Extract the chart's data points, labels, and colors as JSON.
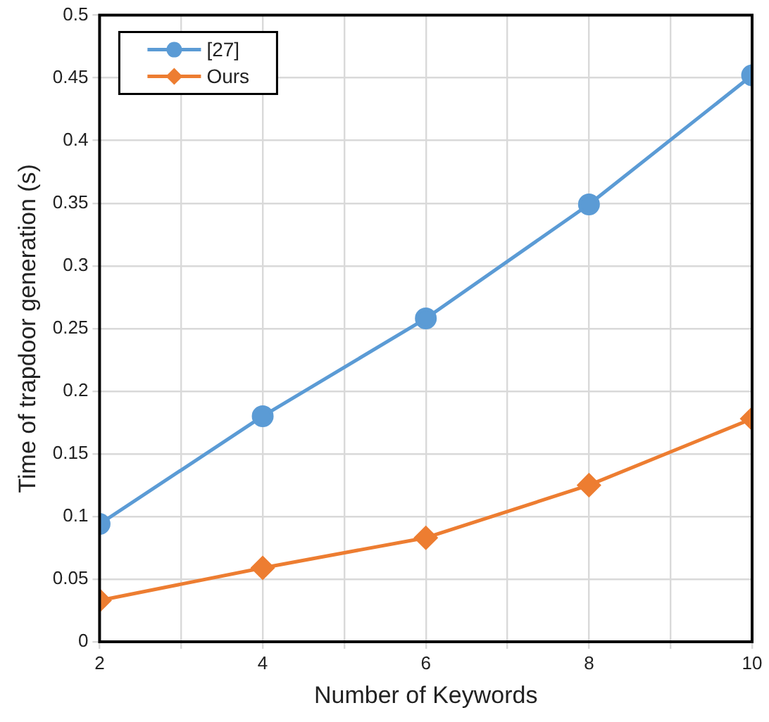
{
  "chart_data": {
    "type": "line",
    "xlabel": "Number of Keywords",
    "ylabel": "Time of trapdoor generation (s)",
    "x": [
      2,
      4,
      6,
      8,
      10
    ],
    "series": [
      {
        "name": "[27]",
        "color": "#5b9bd5",
        "marker": "circle",
        "values": [
          0.094,
          0.18,
          0.258,
          0.349,
          0.452
        ]
      },
      {
        "name": "Ours",
        "color": "#ed7d31",
        "marker": "diamond",
        "values": [
          0.033,
          0.059,
          0.083,
          0.125,
          0.178
        ]
      }
    ],
    "xlim": [
      2,
      10
    ],
    "xticks": [
      2,
      {
        "value": 3,
        "label": null
      },
      4,
      {
        "value": 5,
        "label": null
      },
      6,
      {
        "value": 7,
        "label": null
      },
      8,
      {
        "value": 9,
        "label": null
      },
      10
    ],
    "ylim": [
      0,
      0.5
    ],
    "yticks": [
      0,
      0.05,
      0.1,
      0.15,
      0.2,
      0.25,
      0.3,
      0.35,
      0.4,
      0.45,
      0.5
    ],
    "grid": true,
    "legend": "top left",
    "line_style": "solid"
  }
}
